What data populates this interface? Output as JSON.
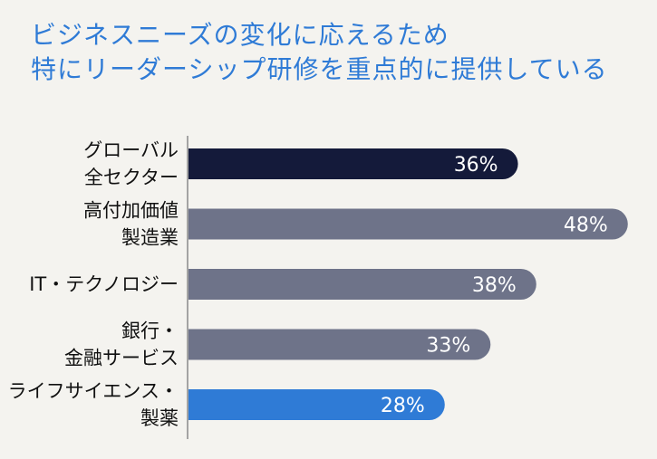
{
  "chart_data": {
    "type": "bar",
    "orientation": "horizontal",
    "title": [
      "ビジネスニーズの変化に応えるため",
      "特にリーダーシップ研修を重点的に提供している"
    ],
    "categories": [
      [
        "グローバル",
        "全セクター"
      ],
      [
        "高付加価値",
        "製造業"
      ],
      [
        "IT・テクノロジー"
      ],
      [
        "銀行・",
        "金融サービス"
      ],
      [
        "ライフサイエンス・",
        "製薬"
      ]
    ],
    "values": [
      36,
      48,
      38,
      33,
      28
    ],
    "value_labels": [
      "36%",
      "48%",
      "38%",
      "33%",
      "28%"
    ],
    "colors": [
      "#141a3a",
      "#6e7389",
      "#6e7389",
      "#6e7389",
      "#2f7bd6"
    ],
    "value_unit": "%"
  }
}
